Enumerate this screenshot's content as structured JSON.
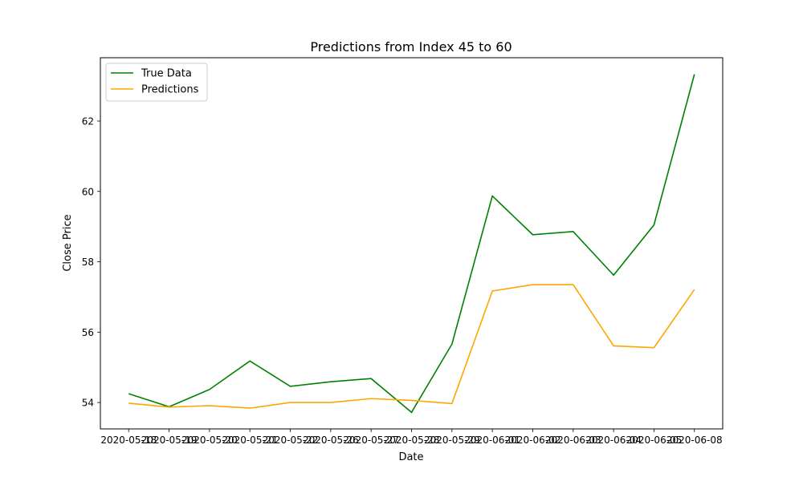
{
  "chart_data": {
    "type": "line",
    "title": "Predictions from Index 45 to 60",
    "xlabel": "Date",
    "ylabel": "Close Price",
    "categories": [
      "2020-05-18",
      "2020-05-19",
      "2020-05-20",
      "2020-05-21",
      "2020-05-22",
      "2020-05-26",
      "2020-05-27",
      "2020-05-28",
      "2020-05-29",
      "2020-06-01",
      "2020-06-02",
      "2020-06-03",
      "2020-06-04",
      "2020-06-05",
      "2020-06-08"
    ],
    "yticks": [
      54,
      56,
      58,
      60,
      62
    ],
    "ylim": [
      53.25,
      63.8
    ],
    "grid": false,
    "legend": "top-left",
    "series": [
      {
        "name": "True Data",
        "color": "#008000",
        "values": [
          54.25,
          53.88,
          54.37,
          55.18,
          54.46,
          54.59,
          54.68,
          53.72,
          55.66,
          59.87,
          58.77,
          58.86,
          57.62,
          59.05,
          63.33
        ]
      },
      {
        "name": "Predictions",
        "color": "#FFA500",
        "values": [
          53.98,
          53.87,
          53.91,
          53.84,
          54.0,
          54.0,
          54.11,
          54.06,
          53.97,
          57.17,
          57.35,
          57.35,
          55.61,
          55.56,
          57.21
        ]
      }
    ]
  }
}
